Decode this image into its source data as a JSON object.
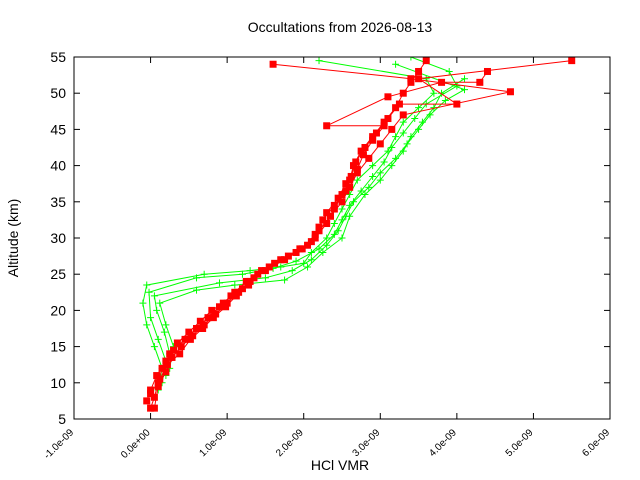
{
  "chart_data": {
    "type": "line",
    "title": "Occultations from 2026-08-13",
    "xlabel": "HCl VMR",
    "ylabel": "Altitude (km)",
    "xlim": [
      -1e-09,
      6e-09
    ],
    "ylim": [
      5,
      55
    ],
    "x_ticks": [
      -1e-09,
      0.0,
      1e-09,
      2e-09,
      3e-09,
      4e-09,
      5e-09,
      6e-09
    ],
    "x_tick_labels": [
      "-1.0e-09",
      "0.0e+00",
      "1.0e-09",
      "2.0e-09",
      "3.0e-09",
      "4.0e-09",
      "5.0e-09",
      "6.0e-09"
    ],
    "y_ticks": [
      5,
      10,
      15,
      20,
      25,
      30,
      35,
      40,
      45,
      50,
      55
    ],
    "y_tick_labels": [
      "5",
      "10",
      "15",
      "20",
      "25",
      "30",
      "35",
      "40",
      "45",
      "50",
      "55"
    ],
    "grid": false,
    "legend": "none",
    "series": [
      {
        "color": "#ff0000",
        "marker": "square",
        "profiles": [
          {
            "x": [
              0.0,
              5e-11,
              1e-10,
              1.5e-10,
              2.5e-10,
              3.5e-10,
              5e-10,
              6.5e-10,
              8e-10,
              9.5e-10,
              1.1e-09,
              1.25e-09,
              1.45e-09,
              1.7e-09,
              1.95e-09,
              2.15e-09,
              2.3e-09,
              2.4e-09,
              2.5e-09,
              2.6e-09,
              2.65e-09,
              2.75e-09,
              2.9e-09,
              3.05e-09,
              3.2e-09,
              3.3e-09,
              3.4e-09,
              3.5e-09,
              3.6e-09
            ],
            "y": [
              6.5,
              8,
              10,
              12,
              14,
              15.5,
              17,
              18.5,
              20,
              21,
              22.5,
              24,
              25.5,
              27,
              28.5,
              30,
              32,
              34,
              36,
              38,
              40,
              42,
              44,
              46,
              48,
              50,
              51.5,
              53,
              54.5
            ]
          },
          {
            "x": [
              -5e-11,
              0.0,
              8e-11,
              2e-10,
              3e-10,
              4.5e-10,
              6e-10,
              7.5e-10,
              9e-10,
              1.05e-09,
              1.2e-09,
              1.35e-09,
              1.55e-09,
              1.8e-09,
              2.05e-09,
              2.2e-09,
              2.35e-09,
              2.5e-09,
              2.6e-09,
              2.7e-09,
              2.85e-09,
              3e-09,
              3.15e-09,
              3.3e-09,
              4.7e-09,
              3.4e-09,
              1.6e-09
            ],
            "y": [
              7.5,
              9,
              11,
              13,
              14.5,
              16,
              17.5,
              19,
              20.5,
              22,
              23,
              24.5,
              26,
              27.5,
              29,
              31,
              33,
              35,
              37,
              39,
              41,
              43,
              45,
              47,
              50.2,
              52,
              54
            ]
          },
          {
            "x": [
              5e-11,
              1e-10,
              2e-10,
              2.8e-10,
              4e-10,
              5.5e-10,
              7e-10,
              8.5e-10,
              1e-09,
              1.15e-09,
              1.3e-09,
              1.5e-09,
              1.75e-09,
              1.98e-09,
              2.15e-09,
              2.25e-09,
              2.4e-09,
              2.55e-09,
              2.62e-09,
              2.68e-09,
              2.8e-09,
              2.95e-09,
              3.1e-09,
              3.25e-09,
              4e-09,
              3.5e-09,
              5.5e-09
            ],
            "y": [
              6.5,
              9.5,
              11.5,
              13.5,
              15,
              16.5,
              18,
              19.5,
              21,
              22.5,
              24,
              25.5,
              27,
              28.5,
              30.5,
              32.5,
              34.5,
              36.5,
              38.5,
              40.5,
              42.5,
              44.5,
              46.5,
              48.5,
              48.5,
              52,
              54.5
            ]
          },
          {
            "x": [
              0.0,
              1.2e-10,
              2.2e-10,
              3.8e-10,
              5.2e-10,
              6.8e-10,
              8.2e-10,
              9.8e-10,
              1.12e-09,
              1.28e-09,
              1.4e-09,
              1.62e-09,
              1.9e-09,
              2.1e-09,
              2.2e-09,
              2.3e-09,
              2.45e-09,
              2.55e-09,
              2.7e-09,
              2.78e-09,
              2.9e-09,
              3.05e-09,
              2.3e-09,
              3.1e-09,
              3.8e-09,
              4.3e-09,
              4.4e-09
            ],
            "y": [
              8.5,
              10.5,
              12.5,
              14,
              16,
              17.5,
              19,
              20.5,
              22,
              23.5,
              25,
              26.5,
              28,
              29.5,
              31.5,
              33.5,
              35.5,
              37.5,
              39.5,
              41.5,
              43.5,
              45.5,
              45.5,
              49.5,
              51.5,
              51.5,
              53
            ]
          }
        ]
      },
      {
        "color": "#00ff00",
        "marker": "plus",
        "profiles": [
          {
            "x": [
              1e-10,
              1.5e-10,
              5e-11,
              -5e-11,
              -1e-10,
              -5e-11,
              7e-10,
              1.3e-09,
              1.7e-09,
              2e-09,
              2.1e-09,
              2.3e-09,
              2.4e-09,
              2.5e-09,
              2.6e-09,
              2.7e-09,
              2.9e-09,
              3.1e-09,
              3.2e-09,
              3.3e-09,
              3.5e-09,
              3.7e-09,
              3.6e-09,
              2.2e-09
            ],
            "y": [
              9,
              12,
              15,
              18,
              21,
              23.5,
              25,
              25.5,
              26,
              26.5,
              28,
              30,
              32,
              34,
              36,
              38,
              40,
              42,
              44,
              46,
              48,
              50,
              52,
              54.5
            ]
          },
          {
            "x": [
              1.5e-10,
              2e-10,
              1e-10,
              0.0,
              -2e-11,
              6e-10,
              1.2e-09,
              1.6e-09,
              1.9e-09,
              2.2e-09,
              2.4e-09,
              2.5e-09,
              2.6e-09,
              2.75e-09,
              2.9e-09,
              3.05e-09,
              3.15e-09,
              3.3e-09,
              3.45e-09,
              3.6e-09,
              4e-09,
              3.9e-09,
              3.4e-09
            ],
            "y": [
              10,
              13,
              16,
              19,
              22.5,
              24.5,
              25,
              25.8,
              26.8,
              28.5,
              30.5,
              32.5,
              34.5,
              36.5,
              38.5,
              40.5,
              42.5,
              44.5,
              46.5,
              48.5,
              51,
              53,
              55
            ]
          },
          {
            "x": [
              2e-10,
              2.5e-10,
              1.8e-10,
              8e-11,
              5e-11,
              9e-10,
              1.5e-09,
              1.85e-09,
              2.1e-09,
              2.3e-09,
              2.45e-09,
              2.55e-09,
              2.65e-09,
              2.85e-09,
              3e-09,
              3.2e-09,
              3.35e-09,
              3.5e-09,
              3.65e-09,
              3.85e-09,
              4.1e-09,
              3.2e-09
            ],
            "y": [
              11,
              14,
              17,
              20,
              22,
              23.8,
              24.5,
              25.5,
              27,
              29,
              31,
              33,
              35,
              37,
              39,
              41,
              43,
              45,
              47,
              49,
              50.5,
              54
            ]
          },
          {
            "x": [
              2.5e-10,
              3e-10,
              2e-10,
              1.2e-10,
              6e-10,
              1.1e-09,
              1.75e-09,
              2.05e-09,
              2.25e-09,
              2.5e-09,
              2.6e-09,
              2.8e-09,
              3e-09,
              3.15e-09,
              3.3e-09,
              3.4e-09,
              3.55e-09,
              3.7e-09,
              3.8e-09,
              4.1e-09
            ],
            "y": [
              12,
              15,
              18,
              21,
              22.8,
              23.5,
              24.2,
              26,
              28,
              30,
              33,
              36,
              38,
              40,
              42,
              44,
              46,
              48,
              50,
              52
            ]
          }
        ]
      }
    ]
  }
}
